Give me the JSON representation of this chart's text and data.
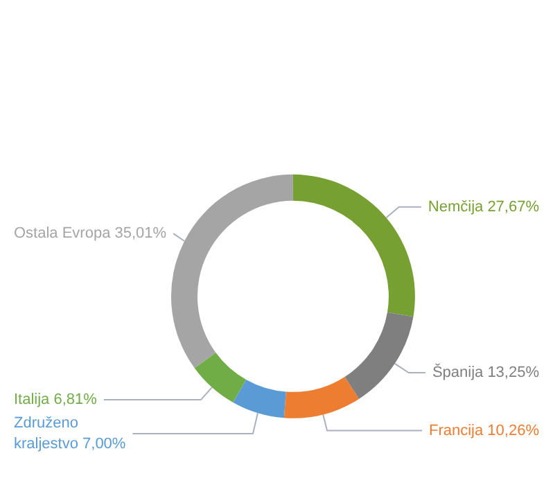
{
  "chart_data": {
    "type": "donut",
    "categories": [
      "Nemčija",
      "Španija",
      "Francija",
      "Združeno kraljestvo",
      "Italija",
      "Ostala Evropa"
    ],
    "values": [
      27.67,
      13.25,
      10.26,
      7.0,
      6.81,
      35.01
    ],
    "value_labels": [
      "27,67%",
      "13,25%",
      "10,26%",
      "7,00%",
      "6,81%",
      "35,01%"
    ],
    "colors": [
      "#77a033",
      "#7f7f7f",
      "#ed7d31",
      "#5b9bd5",
      "#70ad47",
      "#a5a5a5"
    ],
    "legend": false
  }
}
